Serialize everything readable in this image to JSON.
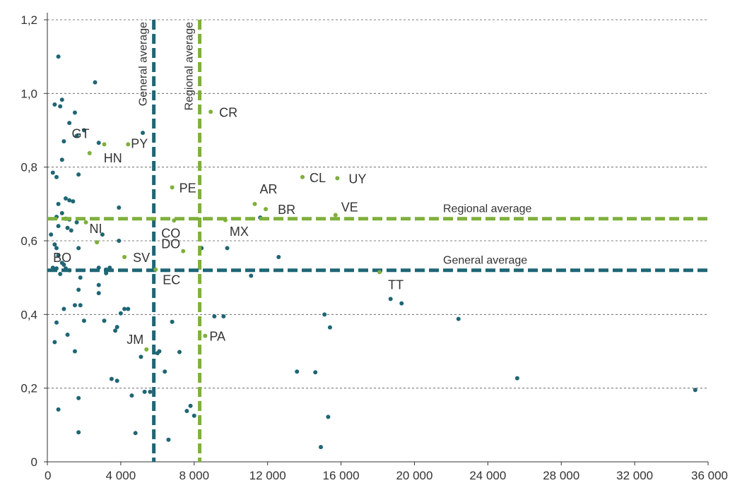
{
  "chart_data": {
    "type": "scatter",
    "title": "",
    "xlabel": "",
    "ylabel": "",
    "xlim": [
      0,
      36000
    ],
    "ylim": [
      0,
      1.2
    ],
    "x_ticks": [
      {
        "value": 0,
        "label": "0"
      },
      {
        "value": 4000,
        "label": "4 000"
      },
      {
        "value": 8000,
        "label": "8 000"
      },
      {
        "value": 12000,
        "label": "12 000"
      },
      {
        "value": 16000,
        "label": "16 000"
      },
      {
        "value": 20000,
        "label": "20 000"
      },
      {
        "value": 24000,
        "label": "24 000"
      },
      {
        "value": 28000,
        "label": "28 000"
      },
      {
        "value": 32000,
        "label": "32 000"
      },
      {
        "value": 36000,
        "label": "36 000"
      }
    ],
    "y_ticks": [
      {
        "value": 0,
        "label": "0"
      },
      {
        "value": 0.2,
        "label": "0,2"
      },
      {
        "value": 0.4,
        "label": "0,4"
      },
      {
        "value": 0.6,
        "label": "0,6"
      },
      {
        "value": 0.8,
        "label": "0,8"
      },
      {
        "value": 1.0,
        "label": "1,0"
      },
      {
        "value": 1.2,
        "label": "1,2"
      }
    ],
    "grid": {
      "horizontal": true,
      "vertical": false
    },
    "colors": {
      "world": "#1f6675",
      "regional": "#7fb03c",
      "grid": "#555555"
    },
    "reference_lines": [
      {
        "orientation": "vertical",
        "value": 5800,
        "label": "General average",
        "color": "#1f6675"
      },
      {
        "orientation": "vertical",
        "value": 8300,
        "label": "Regional average",
        "color": "#7fb03c"
      },
      {
        "orientation": "horizontal",
        "value": 0.66,
        "label": "Regional average",
        "color": "#7fb03c"
      },
      {
        "orientation": "horizontal",
        "value": 0.52,
        "label": "General average",
        "color": "#1f6675"
      }
    ],
    "labeled_points": [
      {
        "label": "GT",
        "x": 3100,
        "y": 0.862
      },
      {
        "label": "PY",
        "x": 4400,
        "y": 0.862
      },
      {
        "label": "HN",
        "x": 2300,
        "y": 0.838
      },
      {
        "label": "CR",
        "x": 8900,
        "y": 0.95
      },
      {
        "label": "PE",
        "x": 6800,
        "y": 0.745
      },
      {
        "label": "CL",
        "x": 13900,
        "y": 0.773
      },
      {
        "label": "UY",
        "x": 15800,
        "y": 0.77
      },
      {
        "label": "AR",
        "x": 11300,
        "y": 0.7
      },
      {
        "label": "BR",
        "x": 11900,
        "y": 0.686
      },
      {
        "label": "VE",
        "x": 15700,
        "y": 0.67
      },
      {
        "label": "MX",
        "x": 9700,
        "y": 0.656
      },
      {
        "label": "CO",
        "x": 6900,
        "y": 0.655
      },
      {
        "label": "NI",
        "x": 2100,
        "y": 0.65
      },
      {
        "label": "DO",
        "x": 7400,
        "y": 0.572
      },
      {
        "label": "BO",
        "x": 2700,
        "y": 0.596
      },
      {
        "label": "SV",
        "x": 4200,
        "y": 0.556
      },
      {
        "label": "EC",
        "x": 5900,
        "y": 0.522
      },
      {
        "label": "TT",
        "x": 18100,
        "y": 0.515
      },
      {
        "label": "JM",
        "x": 5400,
        "y": 0.305
      },
      {
        "label": "PA",
        "x": 8600,
        "y": 0.342
      }
    ],
    "other_points": [
      [
        600,
        1.1
      ],
      [
        2600,
        1.03
      ],
      [
        800,
        0.983
      ],
      [
        400,
        0.97
      ],
      [
        700,
        0.965
      ],
      [
        1500,
        0.948
      ],
      [
        1200,
        0.92
      ],
      [
        2000,
        0.9
      ],
      [
        5200,
        0.893
      ],
      [
        1600,
        0.885
      ],
      [
        2800,
        0.866
      ],
      [
        900,
        0.87
      ],
      [
        800,
        0.82
      ],
      [
        300,
        0.785
      ],
      [
        1700,
        0.78
      ],
      [
        500,
        0.773
      ],
      [
        1000,
        0.715
      ],
      [
        1200,
        0.71
      ],
      [
        1400,
        0.707
      ],
      [
        600,
        0.7
      ],
      [
        3900,
        0.69
      ],
      [
        800,
        0.675
      ],
      [
        500,
        0.665
      ],
      [
        1000,
        0.66
      ],
      [
        1200,
        0.658
      ],
      [
        600,
        0.64
      ],
      [
        1100,
        0.635
      ],
      [
        1300,
        0.628
      ],
      [
        1600,
        0.65
      ],
      [
        200,
        0.617
      ],
      [
        3000,
        0.617
      ],
      [
        3900,
        0.6
      ],
      [
        400,
        0.59
      ],
      [
        500,
        0.58
      ],
      [
        1700,
        0.58
      ],
      [
        600,
        0.56
      ],
      [
        800,
        0.54
      ],
      [
        900,
        0.535
      ],
      [
        1000,
        0.525
      ],
      [
        300,
        0.527
      ],
      [
        500,
        0.525
      ],
      [
        1200,
        0.52
      ],
      [
        2800,
        0.527
      ],
      [
        3200,
        0.522
      ],
      [
        3400,
        0.527
      ],
      [
        3200,
        0.512
      ],
      [
        700,
        0.51
      ],
      [
        1800,
        0.5
      ],
      [
        2800,
        0.48
      ],
      [
        1700,
        0.467
      ],
      [
        2800,
        0.458
      ],
      [
        4200,
        0.415
      ],
      [
        4400,
        0.415
      ],
      [
        1800,
        0.425
      ],
      [
        1500,
        0.425
      ],
      [
        900,
        0.415
      ],
      [
        3100,
        0.383
      ],
      [
        4000,
        0.403
      ],
      [
        2000,
        0.383
      ],
      [
        500,
        0.378
      ],
      [
        1100,
        0.345
      ],
      [
        3800,
        0.366
      ],
      [
        3700,
        0.356
      ],
      [
        1500,
        0.3
      ],
      [
        400,
        0.325
      ],
      [
        5100,
        0.285
      ],
      [
        6000,
        0.295
      ],
      [
        6100,
        0.3
      ],
      [
        7200,
        0.298
      ],
      [
        6400,
        0.245
      ],
      [
        3500,
        0.225
      ],
      [
        3800,
        0.22
      ],
      [
        5300,
        0.19
      ],
      [
        5600,
        0.19
      ],
      [
        4600,
        0.18
      ],
      [
        7800,
        0.152
      ],
      [
        7600,
        0.138
      ],
      [
        8000,
        0.125
      ],
      [
        600,
        0.142
      ],
      [
        1700,
        0.173
      ],
      [
        1700,
        0.08
      ],
      [
        4800,
        0.078
      ],
      [
        6600,
        0.06
      ],
      [
        6800,
        0.38
      ],
      [
        8400,
        0.58
      ],
      [
        9100,
        0.395
      ],
      [
        9600,
        0.395
      ],
      [
        9800,
        0.58
      ],
      [
        11100,
        0.505
      ],
      [
        11600,
        0.663
      ],
      [
        12600,
        0.556
      ],
      [
        13600,
        0.245
      ],
      [
        14600,
        0.243
      ],
      [
        15100,
        0.4
      ],
      [
        15400,
        0.365
      ],
      [
        15300,
        0.122
      ],
      [
        14900,
        0.04
      ],
      [
        18700,
        0.442
      ],
      [
        19300,
        0.43
      ],
      [
        22400,
        0.388
      ],
      [
        25600,
        0.227
      ],
      [
        35300,
        0.195
      ]
    ]
  }
}
